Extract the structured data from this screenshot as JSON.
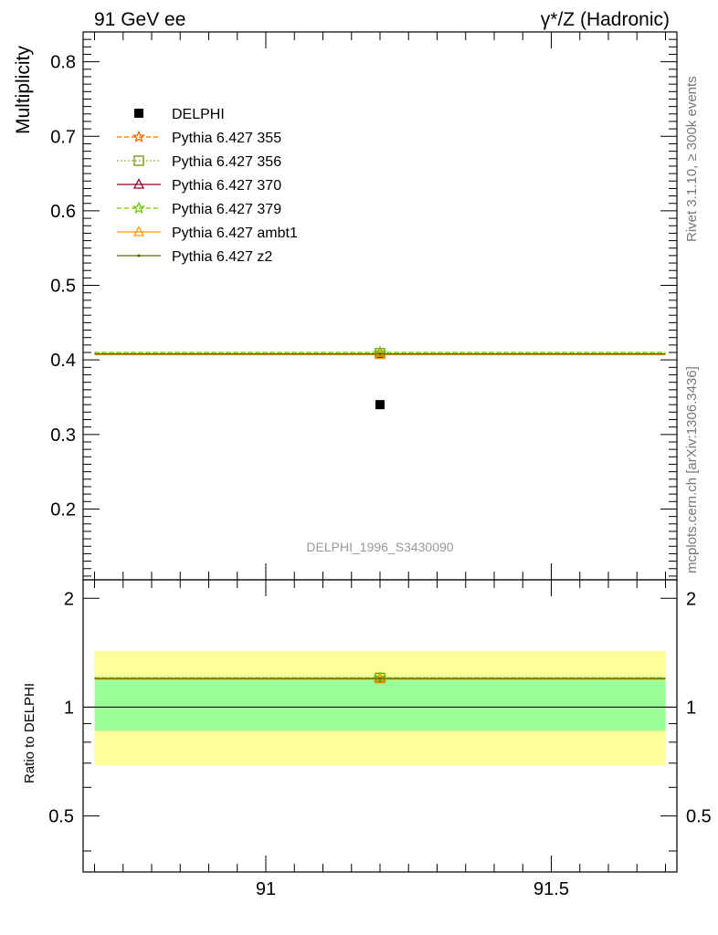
{
  "header": {
    "left_title": "91 GeV ee",
    "right_title": "γ*/Z (Hadronic)"
  },
  "side_labels": {
    "rivet": "Rivet 3.1.10, ≥ 300k events",
    "mcplots": "mcplots.cern.ch [arXiv:1306.3436]"
  },
  "analysis_label": "DELPHI_1996_S3430090",
  "colors": {
    "ratio_band_inner": "#99ff99",
    "ratio_band_outer": "#ffff99"
  },
  "chart_data": [
    {
      "type": "scatter",
      "panel": "main",
      "ylabel": "Multiplicity",
      "xlim": [
        90.68,
        91.72
      ],
      "ylim": [
        0.105,
        0.84
      ],
      "y_ticks": [
        0.2,
        0.3,
        0.4,
        0.5,
        0.6,
        0.7,
        0.8
      ],
      "y_tick_labels": [
        "0.2",
        "0.3",
        "0.4",
        "0.5",
        "0.6",
        "0.7",
        "0.8"
      ],
      "legend_position": "top-left",
      "series": [
        {
          "name": "DELPHI",
          "style": "data",
          "color": "#000000",
          "marker": "square",
          "x": [
            91.2
          ],
          "y": [
            0.34
          ],
          "xrange": [
            90.7,
            91.7
          ]
        },
        {
          "name": "Pythia 6.427 355",
          "style": "dashed",
          "color": "#ff6600",
          "marker": "star",
          "x": [
            91.2
          ],
          "y": [
            0.408
          ],
          "xrange": [
            90.7,
            91.7
          ]
        },
        {
          "name": "Pythia 6.427 356",
          "style": "dotted",
          "color": "#669900",
          "marker": "open-square",
          "x": [
            91.2
          ],
          "y": [
            0.409
          ],
          "xrange": [
            90.7,
            91.7
          ]
        },
        {
          "name": "Pythia 6.427 370",
          "style": "solid",
          "color": "#990022",
          "marker": "open-triangle",
          "x": [
            91.2
          ],
          "y": [
            0.408
          ],
          "xrange": [
            90.7,
            91.7
          ]
        },
        {
          "name": "Pythia 6.427 379",
          "style": "dashed",
          "color": "#66cc00",
          "marker": "star",
          "x": [
            91.2
          ],
          "y": [
            0.41
          ],
          "xrange": [
            90.7,
            91.7
          ]
        },
        {
          "name": "Pythia 6.427 ambt1",
          "style": "solid",
          "color": "#ff9900",
          "marker": "open-triangle",
          "x": [
            91.2
          ],
          "y": [
            0.407
          ],
          "xrange": [
            90.7,
            91.7
          ]
        },
        {
          "name": "Pythia 6.427 z2",
          "style": "solid",
          "color": "#666600",
          "marker": "dot",
          "x": [
            91.2
          ],
          "y": [
            0.408
          ],
          "xrange": [
            90.7,
            91.7
          ]
        }
      ]
    },
    {
      "type": "line",
      "panel": "ratio",
      "ylabel": "Ratio to DELPHI",
      "xlim": [
        90.68,
        91.72
      ],
      "ylim": [
        0.35,
        2.25
      ],
      "x_ticks": [
        91,
        91.5
      ],
      "x_tick_labels": [
        "91",
        "91.5"
      ],
      "y_ticks": [
        0.5,
        1,
        2
      ],
      "y_tick_labels": [
        "0.5",
        "1",
        "2"
      ],
      "reference_line": 1,
      "band_inner": [
        0.86,
        1.21
      ],
      "band_outer": [
        0.69,
        1.43
      ],
      "series": [
        {
          "name": "Pythia 6.427 355",
          "x": [
            91.2
          ],
          "y": [
            1.2
          ]
        },
        {
          "name": "Pythia 6.427 356",
          "x": [
            91.2
          ],
          "y": [
            1.205
          ]
        },
        {
          "name": "Pythia 6.427 370",
          "x": [
            91.2
          ],
          "y": [
            1.2
          ]
        },
        {
          "name": "Pythia 6.427 379",
          "x": [
            91.2
          ],
          "y": [
            1.205
          ]
        },
        {
          "name": "Pythia 6.427 ambt1",
          "x": [
            91.2
          ],
          "y": [
            1.195
          ]
        },
        {
          "name": "Pythia 6.427 z2",
          "x": [
            91.2
          ],
          "y": [
            1.2
          ]
        }
      ]
    }
  ]
}
